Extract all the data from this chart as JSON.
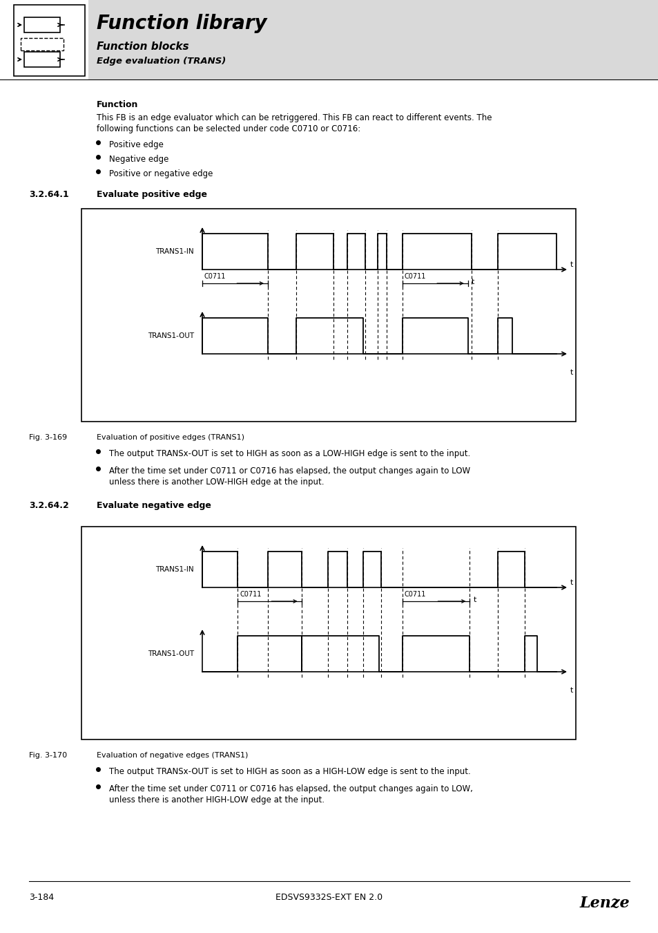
{
  "title": "Function library",
  "subtitle1": "Function blocks",
  "subtitle2": "Edge evaluation (TRANS)",
  "section_label": "3.2.64.1",
  "section_title": "Evaluate positive edge",
  "section2_label": "3.2.64.2",
  "section2_title": "Evaluate negative edge",
  "function_header": "Function",
  "function_text1": "This FB is an edge evaluator which can be retriggered. This FB can react to different events. The",
  "function_text2": "following functions can be selected under code C0710 or C0716:",
  "bullet1": "Positive edge",
  "bullet2": "Negative edge",
  "bullet3": "Positive or negative edge",
  "fig1_label": "Fig. 3-169",
  "fig1_caption": "Evaluation of positive edges (TRANS1)",
  "fig2_label": "Fig. 3-170",
  "fig2_caption": "Evaluation of negative edges (TRANS1)",
  "pos_bullet1": "The output TRANSx-OUT is set to HIGH as soon as a LOW-HIGH edge is sent to the input.",
  "pos_bullet2a": "After the time set under C0711 or C0716 has elapsed, the output changes again to LOW",
  "pos_bullet2b": "unless there is another LOW-HIGH edge at the input.",
  "neg_bullet1": "The output TRANSx-OUT is set to HIGH as soon as a HIGH-LOW edge is sent to the input.",
  "neg_bullet2a": "After the time set under C0711 or C0716 has elapsed, the output changes again to LOW,",
  "neg_bullet2b": "unless there is another HIGH-LOW edge at the input.",
  "footer_left": "3-184",
  "footer_center": "EDSVS9332S-EXT EN 2.0",
  "footer_right": "Lenze",
  "bg_color": "#ffffff",
  "header_bg": "#d9d9d9"
}
